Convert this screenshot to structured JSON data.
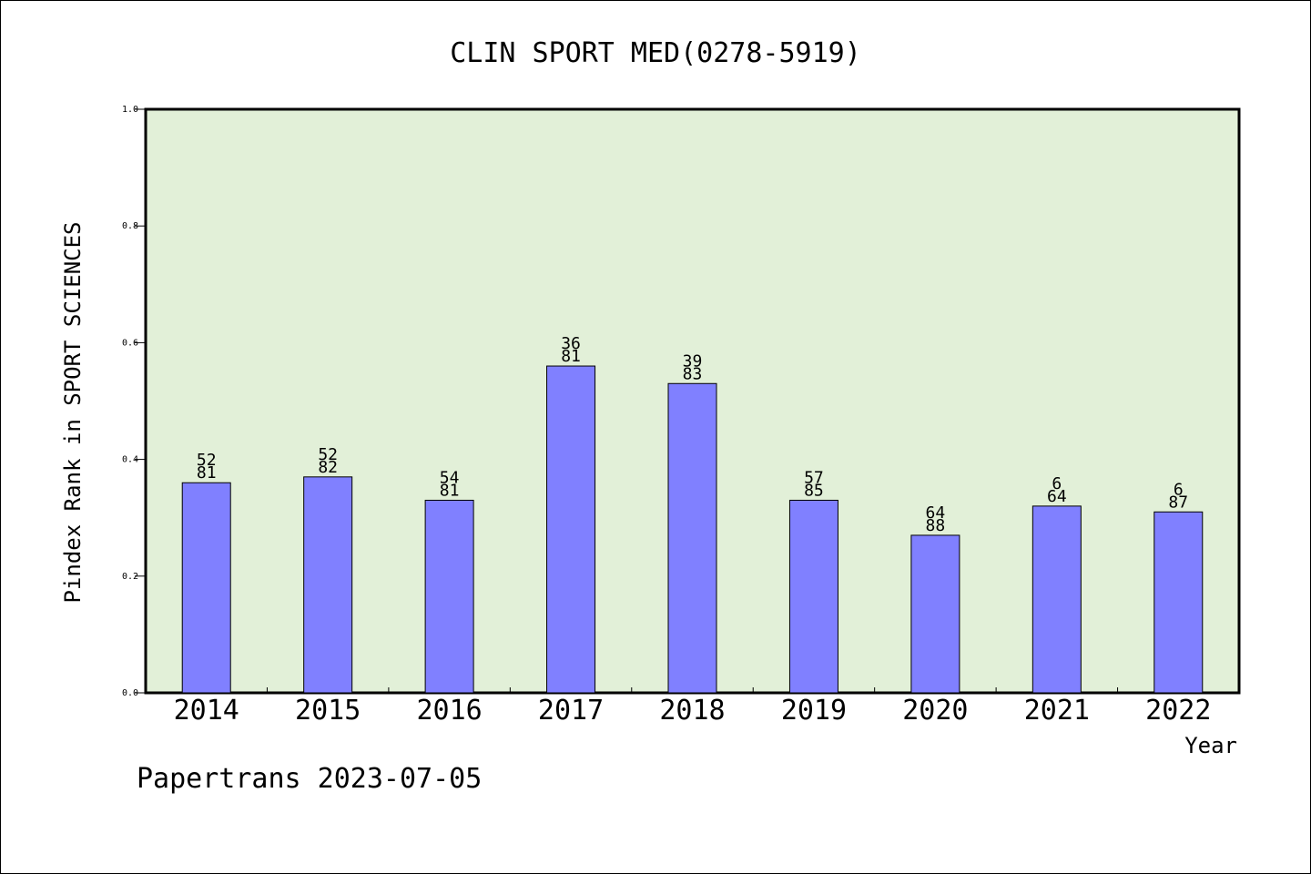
{
  "chart_data": {
    "type": "bar",
    "title": "CLIN SPORT MED(0278-5919)",
    "xlabel": "Year",
    "ylabel": "Pindex Rank in SPORT SCIENCES",
    "footer": "Papertrans 2023-07-05",
    "categories": [
      "2014",
      "2015",
      "2016",
      "2017",
      "2018",
      "2019",
      "2020",
      "2021",
      "2022"
    ],
    "values": [
      0.36,
      0.37,
      0.33,
      0.56,
      0.53,
      0.33,
      0.27,
      0.32,
      0.31
    ],
    "labels_top": [
      "52",
      "52",
      "54",
      "36",
      "39",
      "57",
      "64",
      "6",
      "6"
    ],
    "labels_bottom": [
      "81",
      "82",
      "81",
      "81",
      "83",
      "85",
      "88",
      "64",
      "87"
    ],
    "ylim": [
      0,
      1.0
    ],
    "yticks": [
      "0.0",
      "0.2",
      "0.4",
      "0.6",
      "0.8",
      "1.0"
    ],
    "grid": false,
    "legend": "none",
    "colors": {
      "plot_background": "#e2f0d8",
      "bar_fill": "#8080ff",
      "bar_stroke": "#000000",
      "axis": "#000000"
    }
  }
}
